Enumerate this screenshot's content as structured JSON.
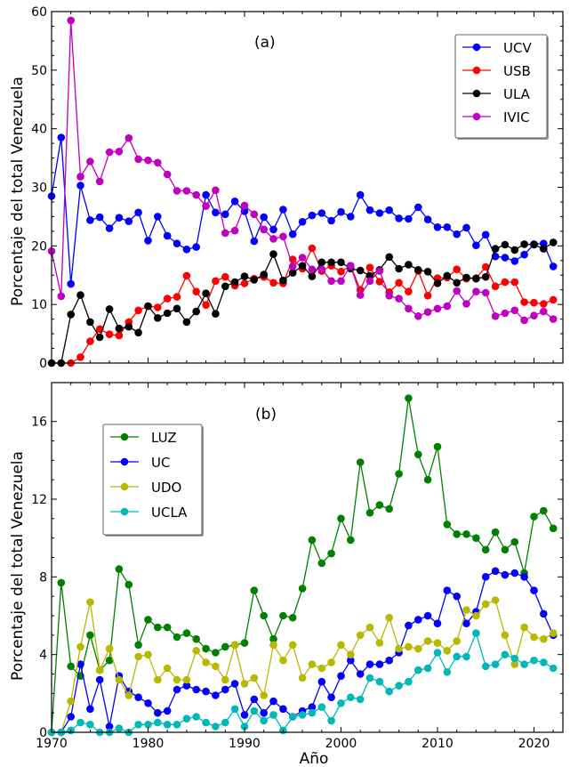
{
  "chart_data": [
    {
      "type": "line",
      "panel_label": "(a)",
      "ylabel": "Porcentaje del total Venezuela",
      "xlim": [
        1970,
        2023
      ],
      "ylim": [
        0,
        60
      ],
      "yticks": [
        "0",
        "10",
        "20",
        "30",
        "40",
        "50",
        "60"
      ],
      "legend_position": "top-right",
      "x": [
        1970,
        1971,
        1972,
        1973,
        1974,
        1975,
        1976,
        1977,
        1978,
        1979,
        1980,
        1981,
        1982,
        1983,
        1984,
        1985,
        1986,
        1987,
        1988,
        1989,
        1990,
        1991,
        1992,
        1993,
        1994,
        1995,
        1996,
        1997,
        1998,
        1999,
        2000,
        2001,
        2002,
        2003,
        2004,
        2005,
        2006,
        2007,
        2008,
        2009,
        2010,
        2011,
        2012,
        2013,
        2014,
        2015,
        2016,
        2017,
        2018,
        2019,
        2020,
        2021,
        2022
      ],
      "series": [
        {
          "name": "UCV",
          "color": "#0000ff",
          "values": [
            28.5,
            38.5,
            13.5,
            30.3,
            24.4,
            24.9,
            23.0,
            24.8,
            24.2,
            25.7,
            20.9,
            25.0,
            21.7,
            20.4,
            19.4,
            19.8,
            28.7,
            25.7,
            25.4,
            27.6,
            25.9,
            20.8,
            24.9,
            22.8,
            26.2,
            22.0,
            24.1,
            25.2,
            25.6,
            24.3,
            25.8,
            25.0,
            28.7,
            26.1,
            25.6,
            26.1,
            24.7,
            24.6,
            26.6,
            24.5,
            23.2,
            23.2,
            22.0,
            23.1,
            20.1,
            21.9,
            18.2,
            18.0,
            17.4,
            18.5,
            20.3,
            20.4,
            16.5
          ]
        },
        {
          "name": "USB",
          "color": "#ff0000",
          "values": [
            0,
            0,
            0,
            1.0,
            3.7,
            5.8,
            4.9,
            4.7,
            7.0,
            9.0,
            9.7,
            9.5,
            11.0,
            11.3,
            14.9,
            12.2,
            9.9,
            14.0,
            14.7,
            13.2,
            13.6,
            14.4,
            14.7,
            13.7,
            13.6,
            17.7,
            16.1,
            19.6,
            15.7,
            16.6,
            15.6,
            16.6,
            12.5,
            16.3,
            13.9,
            12.1,
            13.7,
            12.2,
            15.7,
            11.5,
            14.5,
            14.6,
            16.0,
            14.4,
            14.5,
            16.4,
            13.1,
            13.8,
            13.8,
            10.4,
            10.3,
            10.1,
            10.8
          ]
        },
        {
          "name": "ULA",
          "color": "#000000",
          "values": [
            0,
            0,
            8.3,
            11.6,
            7.0,
            4.4,
            9.2,
            5.9,
            6.2,
            5.2,
            9.7,
            7.7,
            8.5,
            9.3,
            7.0,
            8.8,
            11.9,
            8.4,
            13.1,
            13.8,
            14.8,
            14.2,
            15.1,
            18.6,
            14.1,
            15.4,
            16.6,
            14.8,
            17.2,
            17.2,
            17.2,
            16.1,
            15.8,
            14.9,
            15.9,
            18.1,
            16.1,
            16.8,
            15.9,
            15.6,
            13.6,
            14.9,
            13.7,
            14.6,
            14.4,
            14.7,
            19.5,
            20.2,
            19.3,
            20.3,
            20.2,
            19.5,
            20.6
          ]
        },
        {
          "name": "IVIC",
          "color": "#c000c0",
          "values": [
            19.1,
            11.4,
            58.5,
            31.8,
            34.4,
            31.0,
            36.0,
            36.1,
            38.4,
            34.8,
            34.6,
            34.2,
            32.2,
            29.4,
            29.4,
            28.7,
            26.8,
            29.5,
            22.2,
            22.6,
            26.9,
            25.4,
            22.8,
            21.2,
            21.6,
            16.5,
            18.0,
            16.0,
            16.0,
            14.0,
            14.0,
            16.6,
            11.6,
            14.0,
            15.7,
            11.5,
            11.0,
            9.3,
            8.0,
            8.7,
            9.3,
            9.7,
            12.3,
            10.1,
            12.2,
            12.0,
            8.0,
            8.5,
            9.0,
            7.3,
            8.1,
            8.8,
            7.5
          ]
        }
      ]
    },
    {
      "type": "line",
      "panel_label": "(b)",
      "ylabel": "Porcentaje del total Venezuela",
      "xlabel": "Año",
      "xlim": [
        1970,
        2023
      ],
      "ylim": [
        0,
        18
      ],
      "yticks": [
        "0",
        "4",
        "8",
        "12",
        "16"
      ],
      "xticks": [
        "1970",
        "1980",
        "1990",
        "2000",
        "2010",
        "2020"
      ],
      "legend_position": "upper-left",
      "x": [
        1970,
        1971,
        1972,
        1973,
        1974,
        1975,
        1976,
        1977,
        1978,
        1979,
        1980,
        1981,
        1982,
        1983,
        1984,
        1985,
        1986,
        1987,
        1988,
        1989,
        1990,
        1991,
        1992,
        1993,
        1994,
        1995,
        1996,
        1997,
        1998,
        1999,
        2000,
        2001,
        2002,
        2003,
        2004,
        2005,
        2006,
        2007,
        2008,
        2009,
        2010,
        2011,
        2012,
        2013,
        2014,
        2015,
        2016,
        2017,
        2018,
        2019,
        2020,
        2021,
        2022
      ],
      "series": [
        {
          "name": "LUZ",
          "color": "#008000",
          "values": [
            0,
            7.7,
            3.4,
            2.9,
            5.0,
            3.2,
            3.7,
            8.4,
            7.6,
            4.5,
            5.8,
            5.4,
            5.4,
            4.9,
            5.1,
            4.8,
            4.3,
            4.1,
            4.4,
            4.5,
            4.6,
            7.3,
            6.0,
            4.8,
            6.0,
            5.9,
            7.4,
            9.9,
            8.7,
            9.2,
            11.0,
            9.9,
            13.9,
            11.3,
            11.7,
            11.5,
            13.3,
            17.2,
            14.3,
            13.0,
            14.7,
            10.7,
            10.2,
            10.2,
            10.0,
            9.4,
            10.3,
            9.4,
            9.8,
            8.2,
            11.1,
            11.4,
            10.5
          ]
        },
        {
          "name": "UC",
          "color": "#0000ff",
          "values": [
            0,
            0,
            0.8,
            3.5,
            1.2,
            2.7,
            0.3,
            2.9,
            2.1,
            1.8,
            1.5,
            1.0,
            1.1,
            2.2,
            2.4,
            2.2,
            2.1,
            1.9,
            2.2,
            2.5,
            0.9,
            1.7,
            1.0,
            1.6,
            1.2,
            0.8,
            1.1,
            1.3,
            2.6,
            1.8,
            2.9,
            3.7,
            3.0,
            3.5,
            3.5,
            3.7,
            4.1,
            5.5,
            5.8,
            6.0,
            5.6,
            7.3,
            7.0,
            5.6,
            6.2,
            8.0,
            8.3,
            8.1,
            8.2,
            8.0,
            7.3,
            6.1,
            5.0
          ]
        },
        {
          "name": "UDO",
          "color": "#b8b800",
          "values": [
            0,
            0,
            1.6,
            4.4,
            6.7,
            3.2,
            4.3,
            2.7,
            1.9,
            3.9,
            4.0,
            2.7,
            3.3,
            2.7,
            2.7,
            4.2,
            3.6,
            3.4,
            2.7,
            4.5,
            2.5,
            2.8,
            1.9,
            4.5,
            3.7,
            4.5,
            2.8,
            3.5,
            3.3,
            3.6,
            4.5,
            4.0,
            5.0,
            5.4,
            4.6,
            5.9,
            4.3,
            4.4,
            4.3,
            4.7,
            4.6,
            4.2,
            4.7,
            6.3,
            6.0,
            6.6,
            6.8,
            5.0,
            3.5,
            5.4,
            4.9,
            4.8,
            5.1
          ]
        },
        {
          "name": "UCLA",
          "color": "#00b8b8",
          "values": [
            0,
            0,
            0.1,
            0.5,
            0.4,
            0,
            0,
            0.2,
            0,
            0.4,
            0.4,
            0.5,
            0.4,
            0.4,
            0.7,
            0.8,
            0.5,
            0.3,
            0.5,
            1.2,
            0.3,
            1.1,
            0.6,
            0.9,
            0.1,
            0.8,
            0.9,
            1.0,
            1.3,
            0.6,
            1.5,
            1.8,
            1.7,
            2.8,
            2.6,
            2.1,
            2.4,
            2.6,
            3.2,
            3.3,
            4.1,
            3.1,
            3.9,
            3.9,
            5.1,
            3.4,
            3.5,
            4.0,
            3.8,
            3.5,
            3.7,
            3.6,
            3.3
          ]
        }
      ]
    }
  ]
}
